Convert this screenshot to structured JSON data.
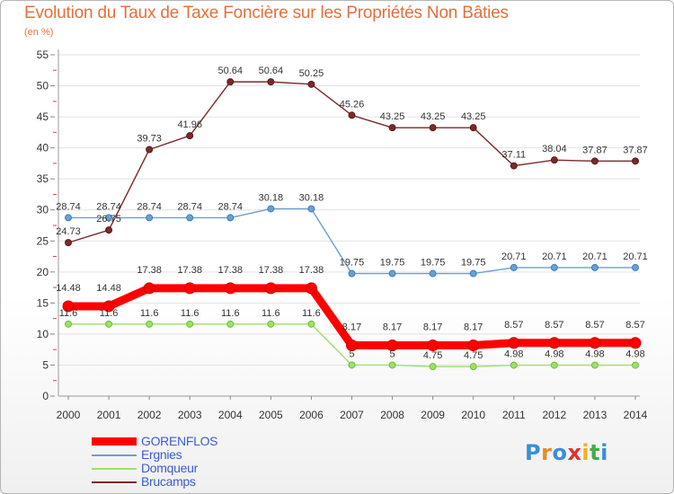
{
  "chart_data": {
    "type": "line",
    "title": "Evolution du Taux de Taxe Foncière sur les Propriétés Non Bâties",
    "subtitle": "(en %)",
    "xlabel": "",
    "ylabel": "",
    "x": [
      "2000",
      "2001",
      "2002",
      "2003",
      "2004",
      "2005",
      "2006",
      "2007",
      "2008",
      "2009",
      "2010",
      "2011",
      "2012",
      "2013",
      "2014"
    ],
    "ylim": [
      0,
      55
    ],
    "yticks": [
      0,
      5,
      10,
      15,
      20,
      25,
      30,
      35,
      40,
      45,
      50,
      55
    ],
    "grid": true,
    "legend_position": "bottom-left",
    "series": [
      {
        "name": "GORENFLOS",
        "color": "#ff0000",
        "values": [
          14.48,
          14.48,
          17.38,
          17.38,
          17.38,
          17.38,
          17.38,
          8.17,
          8.17,
          8.17,
          8.17,
          8.57,
          8.57,
          8.57,
          8.57
        ],
        "labels": [
          "14.48",
          "14.48",
          "17.38",
          "17.38",
          "17.38",
          "17.38",
          "17.38",
          "8.17",
          "8.17",
          "8.17",
          "8.17",
          "8.57",
          "8.57",
          "8.57",
          "8.57"
        ]
      },
      {
        "name": "Ergnies",
        "color": "#6a9fd3",
        "values": [
          28.74,
          28.74,
          28.74,
          28.74,
          28.74,
          30.18,
          30.18,
          19.75,
          19.75,
          19.75,
          19.75,
          20.71,
          20.71,
          20.71,
          20.71
        ],
        "labels": [
          "28.74",
          "28.74",
          "28.74",
          "28.74",
          "28.74",
          "30.18",
          "30.18",
          "19.75",
          "19.75",
          "19.75",
          "19.75",
          "20.71",
          "20.71",
          "20.71",
          "20.71"
        ]
      },
      {
        "name": "Domqueur",
        "color": "#9be168",
        "values": [
          11.6,
          11.6,
          11.6,
          11.6,
          11.6,
          11.6,
          11.6,
          5,
          5,
          4.75,
          4.75,
          4.98,
          4.98,
          4.98,
          4.98
        ],
        "labels": [
          "11.6",
          "11.6",
          "11.6",
          "11.6",
          "11.6",
          "11.6",
          "11.6",
          "5",
          "5",
          "4.75",
          "4.75",
          "4.98",
          "4.98",
          "4.98",
          "4.98"
        ]
      },
      {
        "name": "Brucamps",
        "color": "#7b2a2a",
        "values": [
          24.73,
          26.75,
          39.73,
          41.96,
          50.64,
          50.64,
          50.25,
          45.26,
          43.25,
          43.25,
          43.25,
          37.11,
          38.04,
          37.87,
          37.87
        ],
        "labels": [
          "24.73",
          "26.75",
          "39.73",
          "41.96",
          "50.64",
          "50.64",
          "50.25",
          "45.26",
          "43.25",
          "43.25",
          "43.25",
          "37.11",
          "38.04",
          "37.87",
          "37.87"
        ]
      }
    ]
  },
  "logo": {
    "text": "Proxiti"
  }
}
